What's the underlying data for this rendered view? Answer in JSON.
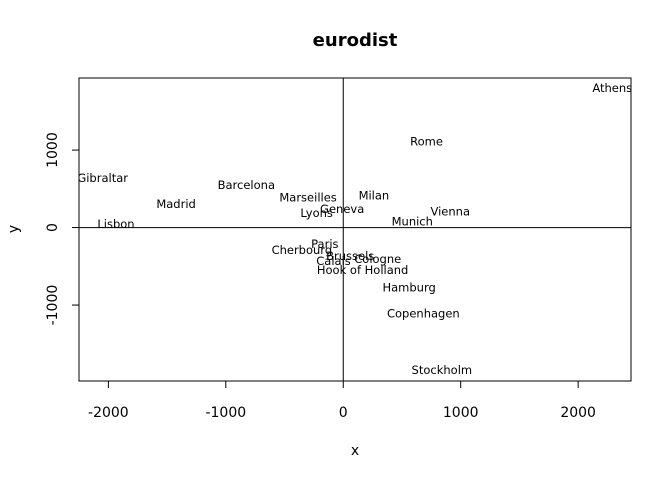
{
  "chart_data": {
    "type": "scatter",
    "title": "eurodist",
    "xlabel": "x",
    "ylabel": "y",
    "xlim": [
      -2250,
      2450
    ],
    "ylim": [
      -1980,
      1930
    ],
    "xticks": [
      -2000,
      -1000,
      0,
      1000,
      2000
    ],
    "yticks": [
      -1000,
      0,
      1000
    ],
    "reference_lines": {
      "x": 0,
      "y": 0
    },
    "points": [
      {
        "label": "Athens",
        "x": 2290.3,
        "y": 1798.8
      },
      {
        "label": "Barcelona",
        "x": -825.4,
        "y": 546.8
      },
      {
        "label": "Brussels",
        "x": 59.2,
        "y": -367.1
      },
      {
        "label": "Calais",
        "x": -82.8,
        "y": -429.9
      },
      {
        "label": "Cherbourg",
        "x": -352.5,
        "y": -290.9
      },
      {
        "label": "Cologne",
        "x": 293.7,
        "y": -405.3
      },
      {
        "label": "Copenhagen",
        "x": 681.9,
        "y": -1108.6
      },
      {
        "label": "Geneva",
        "x": -9.4,
        "y": 240.4
      },
      {
        "label": "Gibraltar",
        "x": -2048.4,
        "y": 642.5
      },
      {
        "label": "Hamburg",
        "x": 561.1,
        "y": -773.4
      },
      {
        "label": "Hook of Holland",
        "x": 164.9,
        "y": -549.4
      },
      {
        "label": "Lisbon",
        "x": -1935.0,
        "y": 49.1
      },
      {
        "label": "Lyons",
        "x": -226.4,
        "y": 187.1
      },
      {
        "label": "Madrid",
        "x": -1423.4,
        "y": 305.9
      },
      {
        "label": "Marseilles",
        "x": -299.5,
        "y": 388.8
      },
      {
        "label": "Milan",
        "x": 260.9,
        "y": 416.7
      },
      {
        "label": "Munich",
        "x": 587.7,
        "y": 81.2
      },
      {
        "label": "Paris",
        "x": -156.8,
        "y": -211.1
      },
      {
        "label": "Rome",
        "x": 709.4,
        "y": 1109.4
      },
      {
        "label": "Stockholm",
        "x": 839.4,
        "y": -1836.8
      },
      {
        "label": "Vienna",
        "x": 911.2,
        "y": 205.9
      }
    ]
  }
}
